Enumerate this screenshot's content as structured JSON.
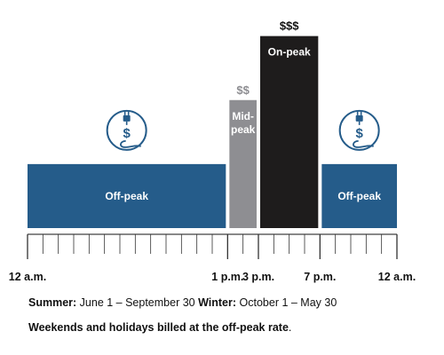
{
  "chart_data": {
    "type": "bar",
    "title": "",
    "xlabel": "",
    "ylabel": "",
    "x_unit": "hour of day",
    "x_range": [
      0,
      24
    ],
    "tick_step_hours": 1,
    "tick_labels": [
      {
        "hour": 0,
        "label": "12 a.m."
      },
      {
        "hour": 13,
        "label": "1 p.m."
      },
      {
        "hour": 15,
        "label": "3 p.m."
      },
      {
        "hour": 19,
        "label": "7 p.m."
      },
      {
        "hour": 24,
        "label": "12 a.m."
      }
    ],
    "periods": [
      {
        "name": "Off-peak",
        "start": 0,
        "end": 13,
        "level": 1,
        "price": "",
        "color": "#255C8A",
        "icon": "plug-dollar-icon"
      },
      {
        "name": "Mid-peak",
        "start": 13,
        "end": 15,
        "level": 2,
        "price": "$$",
        "color": "#8E8E92",
        "label_lines": [
          "Mid-",
          "peak"
        ]
      },
      {
        "name": "On-peak",
        "start": 15,
        "end": 19,
        "level": 3,
        "price": "$$$",
        "color": "#1E1C1C"
      },
      {
        "name": "Off-peak",
        "start": 19,
        "end": 24,
        "level": 1,
        "price": "",
        "color": "#255C8A",
        "icon": "plug-dollar-icon"
      }
    ],
    "level_range": [
      0,
      3.3
    ],
    "icon_colors": {
      "stroke": "#255C8A"
    },
    "price_colors": {
      "$$": "#8E8E92",
      "$$$": "#111111"
    }
  },
  "notes": {
    "summer_label": "Summer:",
    "summer_text": " June 1 – September 30 ",
    "winter_label": "Winter:",
    "winter_text": " October 1 – May 30",
    "weekend_text": "Weekends and holidays billed at the off-peak rate",
    "weekend_end": "."
  }
}
